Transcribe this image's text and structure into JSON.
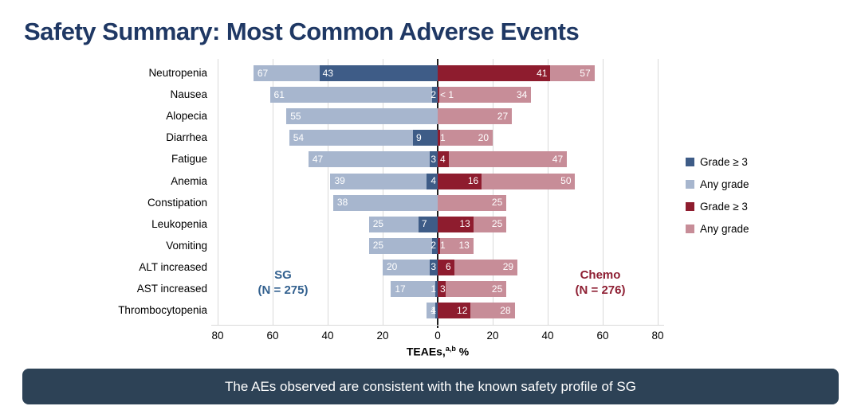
{
  "title": "Safety Summary: Most Common Adverse Events",
  "colors": {
    "title": "#1f3864",
    "sg_grade3": "#3e5c87",
    "sg_any": "#a7b6ce",
    "chemo_grade3": "#8e1c2e",
    "chemo_any": "#c78d98",
    "gridline": "#d9d9d9",
    "zero_line": "#1f1f1f",
    "banner_bg": "#2d4256",
    "sg_annotation": "#33618f",
    "chemo_annotation": "#8e1f33"
  },
  "legend": [
    {
      "label": "Grade ≥ 3",
      "color_key": "sg_grade3"
    },
    {
      "label": "Any grade",
      "color_key": "sg_any"
    },
    {
      "label": "Grade ≥ 3",
      "color_key": "chemo_grade3"
    },
    {
      "label": "Any grade",
      "color_key": "chemo_any"
    }
  ],
  "annotations": {
    "sg": {
      "line1": "SG",
      "line2": "(N = 275)"
    },
    "chemo": {
      "line1": "Chemo",
      "line2": "(N = 276)"
    }
  },
  "axis": {
    "ticks": [
      {
        "value": -80,
        "label": "80"
      },
      {
        "value": -60,
        "label": "60"
      },
      {
        "value": -40,
        "label": "40"
      },
      {
        "value": -20,
        "label": "20"
      },
      {
        "value": 0,
        "label": "0"
      },
      {
        "value": 20,
        "label": "20"
      },
      {
        "value": 40,
        "label": "40"
      },
      {
        "value": 60,
        "label": "60"
      },
      {
        "value": 80,
        "label": "80"
      }
    ],
    "title_prefix": "TEAEs,",
    "title_sup": "a,b",
    "title_suffix": " %"
  },
  "chart_data": {
    "type": "bar",
    "orientation": "diverging-horizontal",
    "title": "Safety Summary: Most Common Adverse Events",
    "xlabel": "TEAEs, %",
    "xlim": [
      -88,
      88
    ],
    "grid": true,
    "legend_position": "right",
    "categories": [
      "Neutropenia",
      "Nausea",
      "Alopecia",
      "Diarrhea",
      "Fatigue",
      "Anemia",
      "Constipation",
      "Leukopenia",
      "Vomiting",
      "ALT increased",
      "AST increased",
      "Thrombocytopenia"
    ],
    "series": [
      {
        "name": "SG Grade ≥ 3",
        "group": "sg",
        "grade": "g3",
        "side": "left",
        "values": [
          43,
          2,
          null,
          9,
          3,
          4,
          null,
          7,
          2,
          3,
          1,
          1
        ]
      },
      {
        "name": "SG Any grade",
        "group": "sg",
        "grade": "any",
        "side": "left",
        "values": [
          67,
          61,
          55,
          54,
          47,
          39,
          38,
          25,
          25,
          20,
          17,
          4
        ]
      },
      {
        "name": "Chemo Grade ≥ 3",
        "group": "chemo",
        "grade": "g3",
        "side": "right",
        "values": [
          41,
          "< 1",
          null,
          1,
          4,
          16,
          null,
          13,
          1,
          6,
          3,
          12
        ]
      },
      {
        "name": "Chemo Any grade",
        "group": "chemo",
        "grade": "any",
        "side": "right",
        "values": [
          57,
          34,
          27,
          20,
          47,
          50,
          25,
          25,
          13,
          29,
          25,
          28
        ]
      }
    ]
  },
  "footer": {
    "text": "The AEs observed are consistent with the known safety profile of SG"
  }
}
